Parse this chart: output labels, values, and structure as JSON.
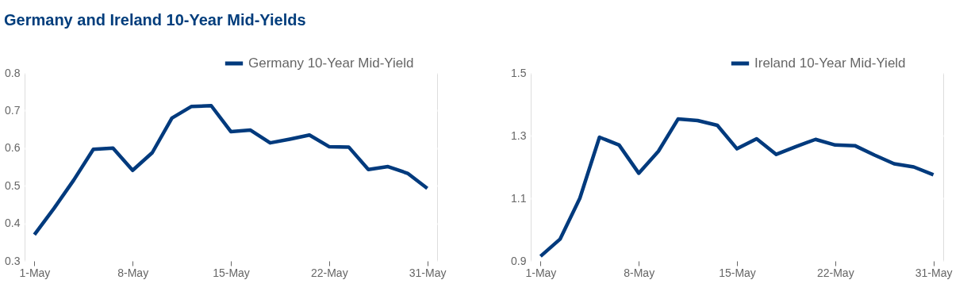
{
  "chart_data": [
    {
      "type": "line",
      "title": "Germany and Ireland 10-Year Mid-Yields",
      "categories": [
        "1-May",
        null,
        null,
        null,
        null,
        "8-May",
        null,
        null,
        null,
        null,
        "15-May",
        null,
        null,
        null,
        null,
        "22-May",
        null,
        null,
        null,
        null,
        "31-May"
      ],
      "series": [
        {
          "name": "Germany 10-Year Mid-Yield",
          "color": "#003a7d",
          "values": [
            0.37,
            0.44,
            0.515,
            0.597,
            0.6,
            0.541,
            0.588,
            0.68,
            0.711,
            0.713,
            0.644,
            0.648,
            0.614,
            0.624,
            0.635,
            0.604,
            0.603,
            0.543,
            0.551,
            0.533,
            0.493
          ]
        }
      ],
      "ylim": [
        0.3,
        0.8
      ],
      "yticks": [
        0.3,
        0.4,
        0.5,
        0.6,
        0.7,
        0.8
      ],
      "grid": "y",
      "legend": "top right"
    },
    {
      "type": "line",
      "categories": [
        "1-May",
        null,
        null,
        null,
        null,
        "8-May",
        null,
        null,
        null,
        null,
        "15-May",
        null,
        null,
        null,
        null,
        "22-May",
        null,
        null,
        null,
        null,
        "31-May"
      ],
      "series": [
        {
          "name": "Ireland 10-Year Mid-Yield",
          "color": "#003a7d",
          "values": [
            0.915,
            0.97,
            1.1,
            1.295,
            1.27,
            1.18,
            1.25,
            1.353,
            1.348,
            1.333,
            1.258,
            1.29,
            1.24,
            1.265,
            1.288,
            1.27,
            1.268,
            1.238,
            1.21,
            1.2,
            1.175
          ]
        }
      ],
      "ylim": [
        0.9,
        1.5
      ],
      "yticks": [
        0.9,
        1.1,
        1.3,
        1.5
      ],
      "grid": "y",
      "legend": "top right"
    }
  ]
}
